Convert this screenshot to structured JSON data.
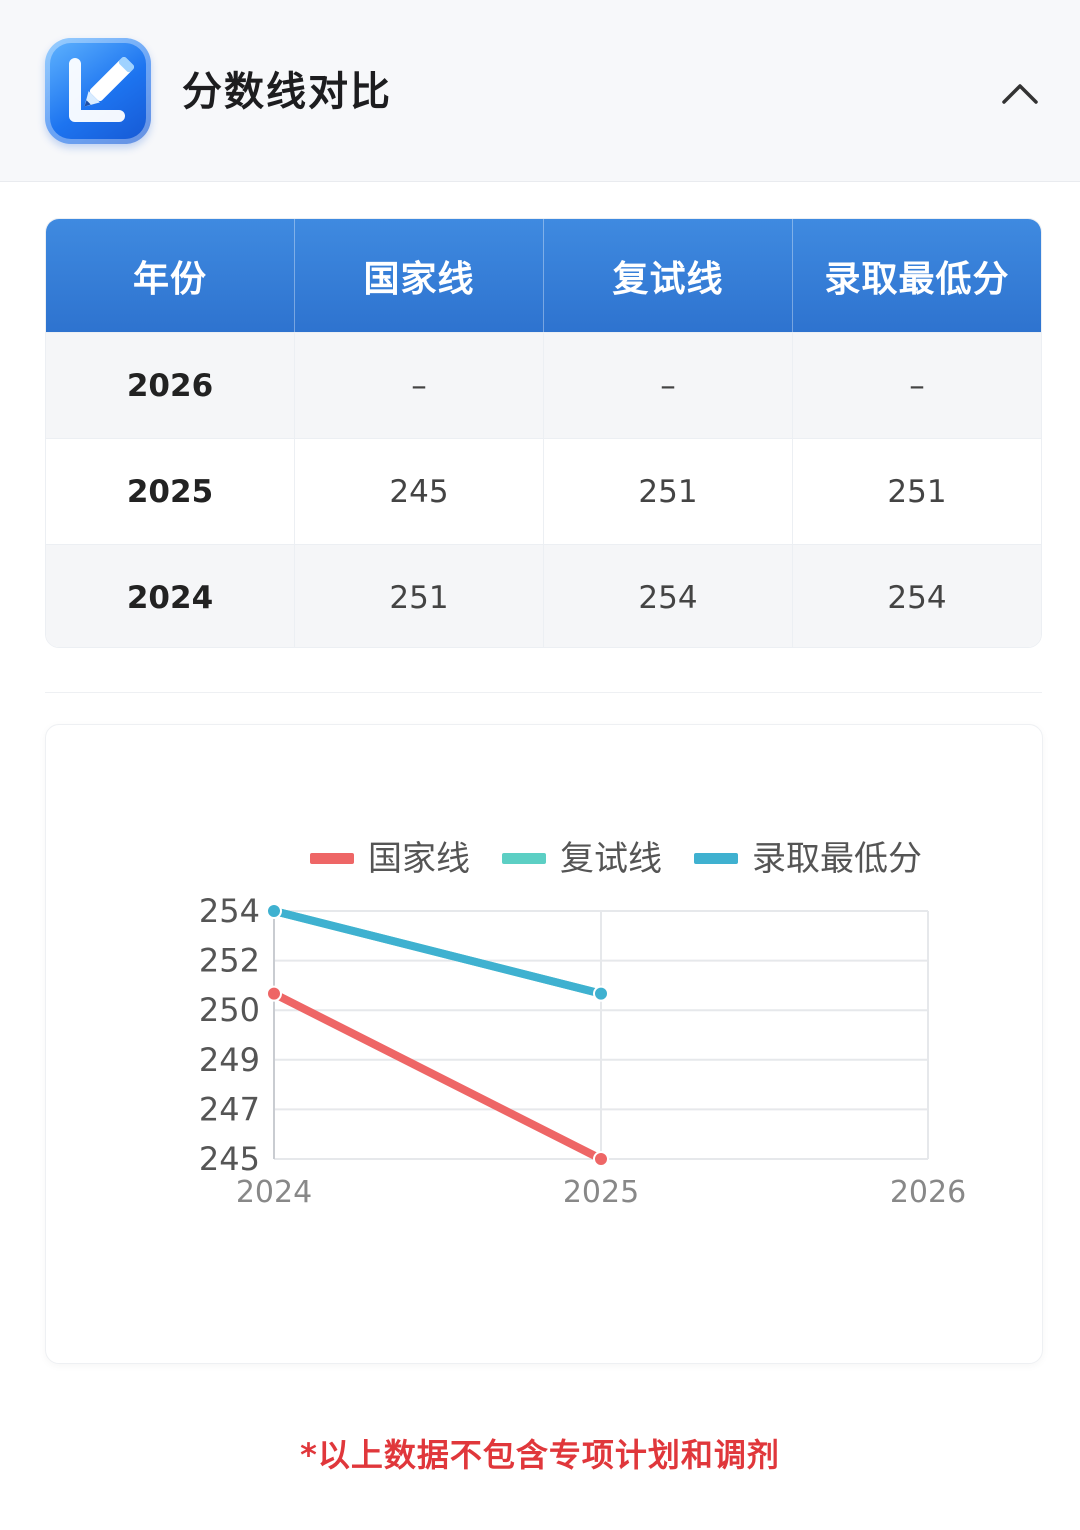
{
  "header": {
    "title": "分数线对比",
    "icon": "edit-pencil-icon",
    "collapse_icon": "chevron-up-icon"
  },
  "table": {
    "columns": [
      "年份",
      "国家线",
      "复试线",
      "录取最低分"
    ],
    "rows": [
      [
        "2026",
        "–",
        "–",
        "–"
      ],
      [
        "2025",
        "245",
        "251",
        "251"
      ],
      [
        "2024",
        "251",
        "254",
        "254"
      ]
    ]
  },
  "chart_data": {
    "type": "line",
    "x": [
      "2024",
      "2025",
      "2026"
    ],
    "ytick_labels": [
      "254",
      "252",
      "250",
      "249",
      "247",
      "245"
    ],
    "ylim": [
      245,
      254
    ],
    "grid": true,
    "legend_position": "top",
    "series": [
      {
        "name": "国家线",
        "color": "#ee6666",
        "values": [
          251,
          245,
          null
        ]
      },
      {
        "name": "复试线",
        "color": "#5ccfc4",
        "values": [
          254,
          251,
          null
        ]
      },
      {
        "name": "录取最低分",
        "color": "#3fb1d0",
        "values": [
          254,
          251,
          null
        ]
      }
    ]
  },
  "footnote": "*以上数据不包含专项计划和调剂"
}
